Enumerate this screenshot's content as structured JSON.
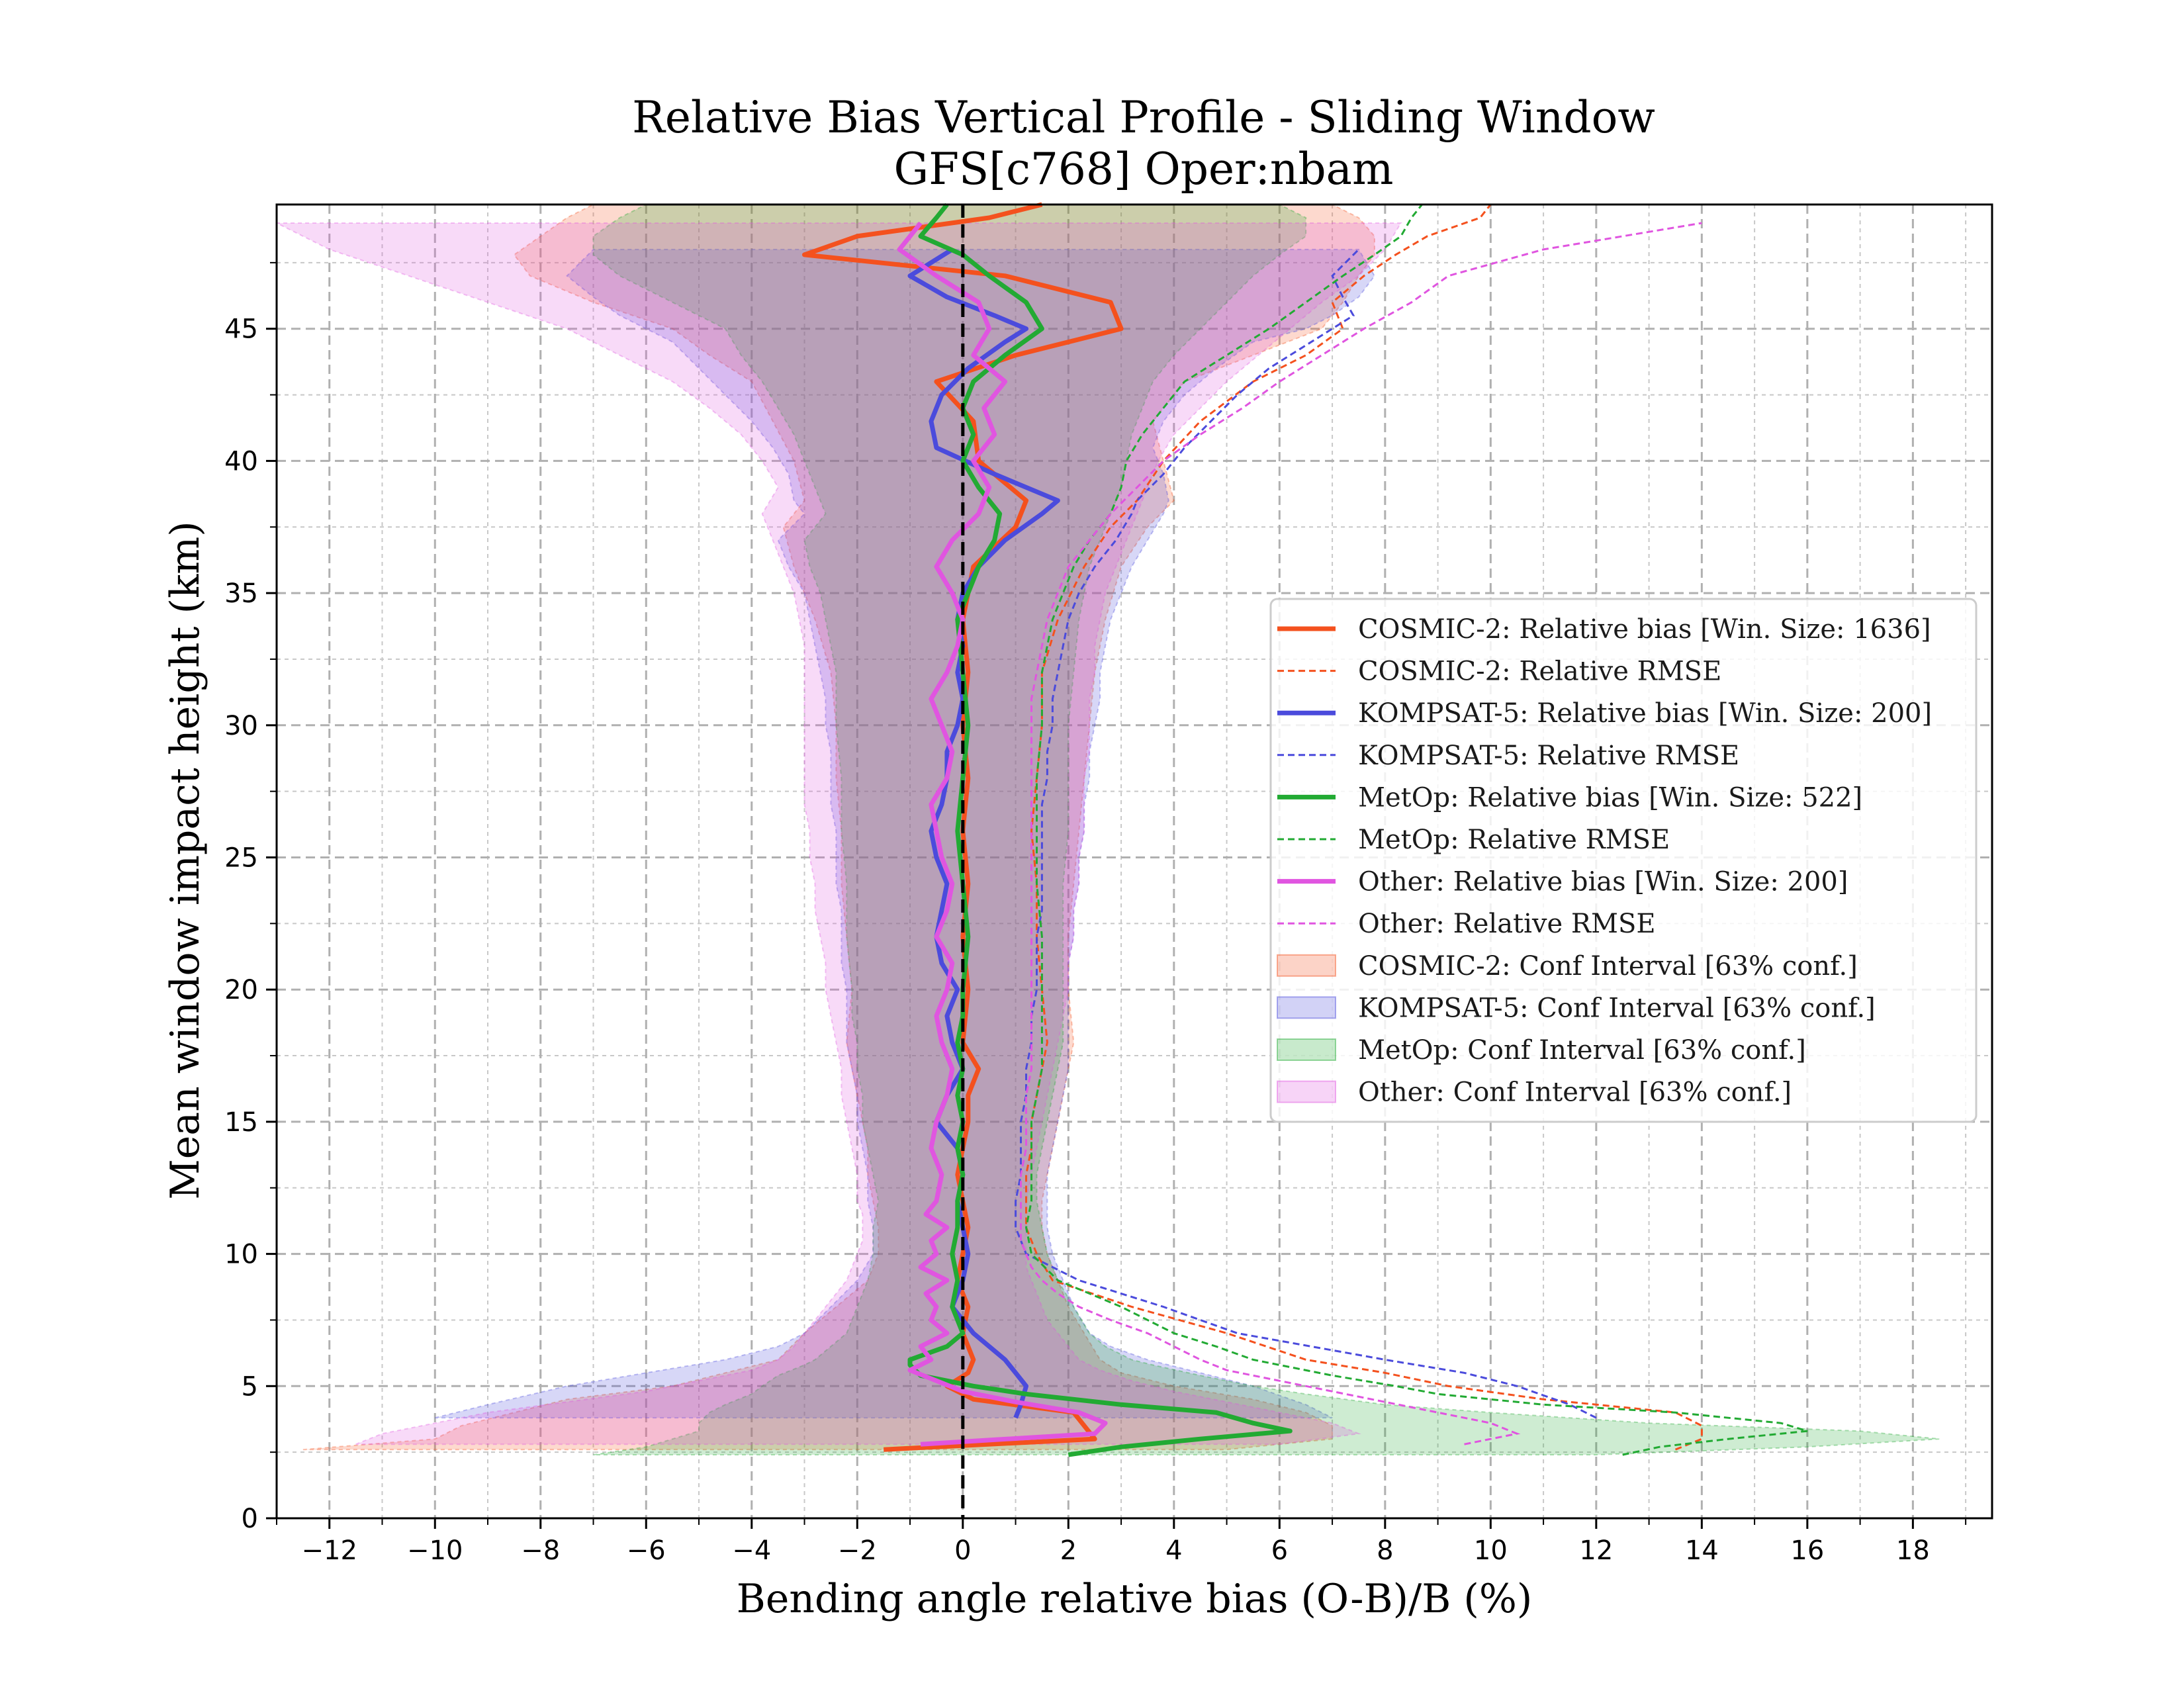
{
  "chart_data": {
    "type": "line",
    "title": "Relative Bias Vertical Profile - Sliding Window",
    "subtitle": "GFS[c768] Oper:nbam",
    "xlabel": "Bending angle relative bias (O-B)/B (%)",
    "ylabel": "Mean window impact height (km)",
    "xlim": [
      -13,
      19.5
    ],
    "ylim": [
      0,
      49.7
    ],
    "x_ticks": [
      -12,
      -10,
      -8,
      -6,
      -4,
      -2,
      0,
      2,
      4,
      6,
      8,
      10,
      12,
      14,
      16,
      18
    ],
    "x_tick_labels": [
      "−12",
      "−10",
      "−8",
      "−6",
      "−4",
      "−2",
      "0",
      "2",
      "4",
      "6",
      "8",
      "10",
      "12",
      "14",
      "16",
      "18"
    ],
    "y_ticks": [
      0,
      5,
      10,
      15,
      20,
      25,
      30,
      35,
      40,
      45
    ],
    "y_tick_labels": [
      "0",
      "5",
      "10",
      "15",
      "20",
      "25",
      "30",
      "35",
      "40",
      "45"
    ],
    "grid": true,
    "zero_line": true,
    "legend_position": "center-right",
    "series": [
      {
        "name": "COSMIC-2",
        "color": "#f4511e",
        "bias_label": "COSMIC-2: Relative bias [Win. Size: 1636]",
        "rmse_label": "COSMIC-2: Relative RMSE",
        "ci_label": "COSMIC-2: Conf Interval [63% conf.]",
        "heights": [
          2.6,
          3.0,
          3.5,
          4.0,
          4.5,
          5.0,
          5.5,
          6.0,
          7.0,
          8.0,
          9.0,
          10.0,
          11.0,
          12.0,
          13.0,
          14.0,
          15.0,
          16.0,
          17.0,
          18.0,
          20.0,
          22.0,
          24.0,
          26.0,
          28.0,
          30.0,
          32.0,
          34.0,
          36.0,
          37.5,
          38.5,
          40.0,
          41.5,
          43.0,
          44.0,
          45.0,
          46.0,
          47.0,
          47.8,
          48.5,
          49.2,
          49.7
        ],
        "bias": [
          -1.5,
          2.5,
          2.3,
          2.1,
          0.2,
          -0.3,
          0.1,
          0.2,
          0.0,
          0.1,
          -0.1,
          0.0,
          0.1,
          0.0,
          -0.1,
          0.0,
          0.1,
          0.1,
          0.3,
          0.0,
          0.1,
          0.0,
          0.1,
          0.0,
          0.1,
          0.0,
          0.1,
          0.0,
          0.2,
          1.0,
          1.2,
          0.3,
          0.2,
          -0.5,
          1.0,
          3.0,
          2.8,
          0.8,
          -3.0,
          -2.0,
          0.5,
          1.5
        ],
        "rmse": [
          13.5,
          14.0,
          14.0,
          13.5,
          11.0,
          9.2,
          8.0,
          6.5,
          5.0,
          3.2,
          1.7,
          1.4,
          1.2,
          1.2,
          1.2,
          1.3,
          1.3,
          1.4,
          1.5,
          1.6,
          1.5,
          1.4,
          1.4,
          1.3,
          1.4,
          1.5,
          1.5,
          1.8,
          2.3,
          2.8,
          3.3,
          3.8,
          4.5,
          5.5,
          6.5,
          7.2,
          7.0,
          7.6,
          8.2,
          8.8,
          9.8,
          10.0
        ],
        "ci_lower": [
          -12.5,
          -10.0,
          -9.5,
          -8.5,
          -7.5,
          -5.5,
          -4.5,
          -3.5,
          -3.0,
          -2.4,
          -1.8,
          -1.6,
          -1.6,
          -1.7,
          -1.8,
          -1.8,
          -1.9,
          -2.0,
          -2.1,
          -2.2,
          -2.1,
          -2.2,
          -2.3,
          -2.3,
          -2.4,
          -2.4,
          -2.5,
          -2.8,
          -3.2,
          -3.4,
          -3.0,
          -3.2,
          -3.6,
          -4.0,
          -4.8,
          -5.5,
          -7.0,
          -8.2,
          -8.5,
          -8.0,
          -7.5,
          -7.0
        ],
        "ci_upper": [
          5.0,
          7.0,
          7.0,
          6.5,
          5.5,
          4.0,
          3.0,
          2.6,
          2.3,
          2.0,
          1.8,
          1.6,
          1.5,
          1.5,
          1.6,
          1.7,
          1.8,
          1.9,
          2.0,
          2.1,
          2.0,
          2.0,
          2.1,
          2.2,
          2.3,
          2.4,
          2.5,
          2.7,
          3.0,
          3.5,
          4.0,
          3.8,
          3.6,
          4.2,
          5.5,
          6.8,
          7.2,
          7.5,
          7.8,
          7.8,
          7.5,
          7.0
        ]
      },
      {
        "name": "KOMPSAT-5",
        "color": "#4b4bdc",
        "bias_label": "KOMPSAT-5: Relative bias [Win. Size: 200]",
        "rmse_label": "KOMPSAT-5: Relative RMSE",
        "ci_label": "KOMPSAT-5: Conf Interval [63% conf.]",
        "heights": [
          3.8,
          4.3,
          5.0,
          5.5,
          6.0,
          6.5,
          7.0,
          8.0,
          9.0,
          10.0,
          11.0,
          12.0,
          13.0,
          14.0,
          15.0,
          16.0,
          17.0,
          18.0,
          19.0,
          20.0,
          21.0,
          22.0,
          23.0,
          24.0,
          25.0,
          26.0,
          27.0,
          28.0,
          29.0,
          30.0,
          31.0,
          32.0,
          33.0,
          34.0,
          35.0,
          36.0,
          37.0,
          38.0,
          38.5,
          39.5,
          40.5,
          41.5,
          42.5,
          43.5,
          44.5,
          45.0,
          45.5,
          46.2,
          47.0,
          48.0
        ],
        "bias": [
          1.0,
          1.1,
          1.2,
          1.0,
          0.8,
          0.5,
          0.2,
          -0.2,
          0.0,
          0.1,
          0.0,
          -0.1,
          0.0,
          -0.1,
          -0.5,
          -0.3,
          0.0,
          -0.2,
          -0.3,
          -0.1,
          -0.4,
          -0.5,
          -0.4,
          -0.3,
          -0.5,
          -0.6,
          -0.4,
          -0.3,
          -0.3,
          -0.1,
          0.0,
          -0.1,
          0.0,
          -0.1,
          0.0,
          0.3,
          0.8,
          1.5,
          1.8,
          0.6,
          -0.5,
          -0.6,
          -0.4,
          0.1,
          0.8,
          1.2,
          0.6,
          -0.3,
          -1.0,
          -0.2
        ],
        "rmse": [
          12.0,
          11.5,
          10.5,
          9.5,
          8.0,
          6.6,
          5.2,
          3.8,
          2.2,
          1.2,
          1.0,
          1.0,
          1.1,
          1.1,
          1.1,
          1.2,
          1.2,
          1.3,
          1.3,
          1.4,
          1.4,
          1.4,
          1.5,
          1.5,
          1.5,
          1.5,
          1.5,
          1.6,
          1.6,
          1.7,
          1.7,
          1.8,
          1.9,
          2.0,
          2.2,
          2.5,
          2.9,
          3.2,
          3.3,
          3.8,
          4.2,
          4.7,
          5.2,
          5.8,
          6.6,
          7.0,
          7.4,
          7.2,
          7.0,
          7.5
        ],
        "ci_lower": [
          -10.0,
          -9.0,
          -7.5,
          -6.0,
          -4.5,
          -3.5,
          -3.0,
          -2.5,
          -2.0,
          -1.7,
          -1.7,
          -1.8,
          -1.8,
          -1.9,
          -2.0,
          -2.0,
          -2.1,
          -2.2,
          -2.2,
          -2.2,
          -2.3,
          -2.3,
          -2.3,
          -2.4,
          -2.4,
          -2.4,
          -2.5,
          -2.5,
          -2.5,
          -2.6,
          -2.6,
          -2.7,
          -2.8,
          -2.9,
          -3.0,
          -3.3,
          -3.5,
          -3.0,
          -3.2,
          -3.3,
          -3.6,
          -4.0,
          -4.5,
          -5.0,
          -5.5,
          -6.0,
          -6.5,
          -7.0,
          -7.5,
          -7.0
        ],
        "ci_upper": [
          7.0,
          6.5,
          5.5,
          4.5,
          3.5,
          2.8,
          2.4,
          2.1,
          1.9,
          1.7,
          1.6,
          1.6,
          1.6,
          1.7,
          1.8,
          1.9,
          2.0,
          2.0,
          2.0,
          2.0,
          2.0,
          2.1,
          2.1,
          2.2,
          2.2,
          2.3,
          2.3,
          2.4,
          2.4,
          2.5,
          2.6,
          2.6,
          2.7,
          2.8,
          3.0,
          3.2,
          3.5,
          3.8,
          3.9,
          3.8,
          3.6,
          3.8,
          4.2,
          4.8,
          5.5,
          6.5,
          7.0,
          7.5,
          7.8,
          7.5
        ]
      },
      {
        "name": "MetOp",
        "color": "#22aa33",
        "bias_label": "MetOp: Relative bias [Win. Size: 522]",
        "rmse_label": "MetOp: Relative RMSE",
        "ci_label": "MetOp: Conf Interval [63% conf.]",
        "heights": [
          2.4,
          2.7,
          3.0,
          3.3,
          3.6,
          4.0,
          4.3,
          4.7,
          5.0,
          5.4,
          5.8,
          6.0,
          6.5,
          7.0,
          8.0,
          9.0,
          10.0,
          11.0,
          12.0,
          13.0,
          14.0,
          15.0,
          16.0,
          17.0,
          18.0,
          19.0,
          20.0,
          22.0,
          24.0,
          26.0,
          28.0,
          30.0,
          32.0,
          34.0,
          35.0,
          36.0,
          37.0,
          38.0,
          39.0,
          40.0,
          41.0,
          42.0,
          43.0,
          44.0,
          45.0,
          46.0,
          47.0,
          47.8,
          48.5,
          49.2,
          49.7
        ],
        "bias": [
          2.0,
          3.0,
          4.5,
          6.2,
          5.5,
          4.8,
          3.0,
          1.2,
          0.2,
          -0.8,
          -1.0,
          -1.0,
          -0.3,
          0.0,
          -0.2,
          -0.1,
          -0.2,
          -0.1,
          -0.1,
          0.0,
          -0.1,
          0.0,
          -0.1,
          0.0,
          -0.1,
          0.0,
          0.0,
          0.1,
          0.0,
          -0.1,
          0.0,
          0.1,
          0.0,
          -0.1,
          0.1,
          0.3,
          0.6,
          0.7,
          0.3,
          0.0,
          0.2,
          0.0,
          0.2,
          0.8,
          1.5,
          1.2,
          0.5,
          0.0,
          -0.8,
          -0.5,
          -0.3
        ],
        "rmse": [
          12.5,
          13.2,
          14.5,
          16.0,
          15.5,
          13.5,
          11.0,
          9.0,
          8.2,
          7.0,
          6.0,
          5.5,
          4.8,
          4.0,
          3.0,
          1.8,
          1.3,
          1.2,
          1.3,
          1.3,
          1.3,
          1.3,
          1.4,
          1.5,
          1.5,
          1.5,
          1.5,
          1.5,
          1.4,
          1.4,
          1.4,
          1.5,
          1.5,
          1.7,
          1.9,
          2.1,
          2.4,
          2.8,
          3.0,
          3.1,
          3.4,
          3.8,
          4.2,
          5.0,
          5.8,
          6.5,
          7.2,
          7.8,
          8.3,
          8.5,
          8.7
        ],
        "ci_lower": [
          -7.0,
          -6.0,
          -5.5,
          -5.0,
          -5.0,
          -4.8,
          -4.5,
          -4.0,
          -3.8,
          -3.5,
          -3.0,
          -2.8,
          -2.5,
          -2.2,
          -2.0,
          -1.8,
          -1.7,
          -1.7,
          -1.6,
          -1.7,
          -1.8,
          -1.9,
          -1.9,
          -2.0,
          -2.0,
          -2.1,
          -2.1,
          -2.2,
          -2.2,
          -2.3,
          -2.3,
          -2.4,
          -2.4,
          -2.6,
          -2.7,
          -2.9,
          -3.0,
          -2.6,
          -2.8,
          -3.0,
          -3.2,
          -3.5,
          -3.8,
          -4.2,
          -4.5,
          -5.5,
          -6.5,
          -7.0,
          -7.0,
          -6.5,
          -6.0
        ],
        "ci_upper": [
          12.0,
          16.0,
          18.5,
          17.0,
          13.0,
          10.0,
          8.0,
          6.5,
          5.5,
          4.5,
          3.6,
          3.2,
          2.7,
          2.4,
          2.1,
          1.8,
          1.6,
          1.5,
          1.4,
          1.4,
          1.5,
          1.6,
          1.7,
          1.8,
          1.9,
          1.9,
          1.9,
          1.9,
          1.9,
          2.0,
          2.0,
          2.0,
          2.1,
          2.2,
          2.3,
          2.4,
          2.6,
          2.8,
          3.0,
          3.1,
          3.2,
          3.4,
          3.6,
          4.0,
          4.5,
          5.0,
          5.5,
          6.0,
          6.5,
          6.5,
          6.0
        ]
      },
      {
        "name": "Other",
        "color": "#e055e0",
        "bias_label": "Other: Relative bias [Win. Size: 200]",
        "rmse_label": "Other: Relative RMSE",
        "ci_label": "Other: Conf Interval [63% conf.]",
        "heights": [
          2.8,
          3.2,
          3.6,
          4.0,
          4.4,
          4.8,
          5.2,
          5.6,
          6.0,
          6.5,
          7.0,
          7.5,
          8.0,
          8.5,
          9.0,
          9.5,
          10.0,
          10.5,
          11.0,
          11.5,
          12.0,
          13.0,
          14.0,
          15.0,
          16.0,
          17.0,
          18.0,
          19.0,
          20.0,
          21.0,
          22.0,
          23.0,
          24.0,
          25.0,
          26.0,
          27.0,
          28.0,
          29.0,
          30.0,
          31.0,
          32.0,
          33.0,
          34.0,
          35.0,
          36.0,
          37.0,
          38.0,
          39.0,
          40.0,
          41.0,
          42.0,
          43.0,
          44.0,
          45.0,
          46.0,
          47.0,
          48.0,
          49.0
        ],
        "bias": [
          -0.8,
          2.5,
          2.7,
          2.2,
          1.0,
          0.0,
          -0.5,
          -1.0,
          -0.6,
          -0.8,
          -0.3,
          -0.6,
          -0.5,
          -0.7,
          -0.3,
          -0.8,
          -0.5,
          -0.6,
          -0.3,
          -0.7,
          -0.5,
          -0.4,
          -0.6,
          -0.5,
          -0.3,
          -0.2,
          -0.4,
          -0.5,
          -0.3,
          -0.2,
          -0.5,
          -0.3,
          -0.2,
          -0.4,
          -0.5,
          -0.6,
          -0.3,
          -0.2,
          -0.4,
          -0.6,
          -0.3,
          -0.1,
          0.0,
          -0.2,
          -0.5,
          -0.2,
          0.3,
          0.5,
          0.2,
          0.6,
          0.4,
          0.8,
          0.2,
          0.5,
          0.3,
          -0.5,
          -1.2,
          -0.8
        ],
        "rmse": [
          9.5,
          10.5,
          10.0,
          9.0,
          8.0,
          7.0,
          6.0,
          5.0,
          4.5,
          4.0,
          3.5,
          2.8,
          2.2,
          1.8,
          1.5,
          1.3,
          1.2,
          1.1,
          1.1,
          1.1,
          1.1,
          1.1,
          1.2,
          1.2,
          1.2,
          1.3,
          1.3,
          1.3,
          1.3,
          1.3,
          1.3,
          1.3,
          1.3,
          1.3,
          1.3,
          1.3,
          1.3,
          1.3,
          1.3,
          1.3,
          1.4,
          1.5,
          1.6,
          1.8,
          2.0,
          2.4,
          2.8,
          3.3,
          3.8,
          4.5,
          5.3,
          6.0,
          6.8,
          7.6,
          8.5,
          9.2,
          11.0,
          14.0
        ],
        "ci_lower": [
          -11.5,
          -11.0,
          -10.0,
          -9.0,
          -7.5,
          -6.0,
          -5.0,
          -4.0,
          -3.5,
          -3.2,
          -3.0,
          -2.8,
          -2.6,
          -2.4,
          -2.2,
          -2.1,
          -2.0,
          -1.9,
          -1.9,
          -1.9,
          -2.0,
          -2.0,
          -2.1,
          -2.2,
          -2.3,
          -2.3,
          -2.4,
          -2.5,
          -2.6,
          -2.6,
          -2.7,
          -2.8,
          -2.8,
          -2.9,
          -2.9,
          -3.0,
          -3.0,
          -3.0,
          -3.0,
          -3.0,
          -3.0,
          -3.0,
          -3.1,
          -3.2,
          -3.4,
          -3.6,
          -3.8,
          -3.5,
          -3.8,
          -4.2,
          -4.8,
          -5.5,
          -6.5,
          -7.5,
          -9.0,
          -10.5,
          -12.0,
          -13.0
        ],
        "ci_upper": [
          6.0,
          7.5,
          7.0,
          6.0,
          5.0,
          4.0,
          3.2,
          2.6,
          2.2,
          2.0,
          1.8,
          1.6,
          1.5,
          1.4,
          1.3,
          1.2,
          1.2,
          1.2,
          1.2,
          1.2,
          1.2,
          1.3,
          1.4,
          1.5,
          1.6,
          1.7,
          1.8,
          1.9,
          2.0,
          2.0,
          2.1,
          2.1,
          2.2,
          2.2,
          2.3,
          2.3,
          2.3,
          2.4,
          2.4,
          2.4,
          2.5,
          2.5,
          2.6,
          2.7,
          2.9,
          3.1,
          3.3,
          3.5,
          3.7,
          4.0,
          4.5,
          5.0,
          5.6,
          6.2,
          6.8,
          7.5,
          8.0,
          8.3
        ]
      }
    ]
  }
}
